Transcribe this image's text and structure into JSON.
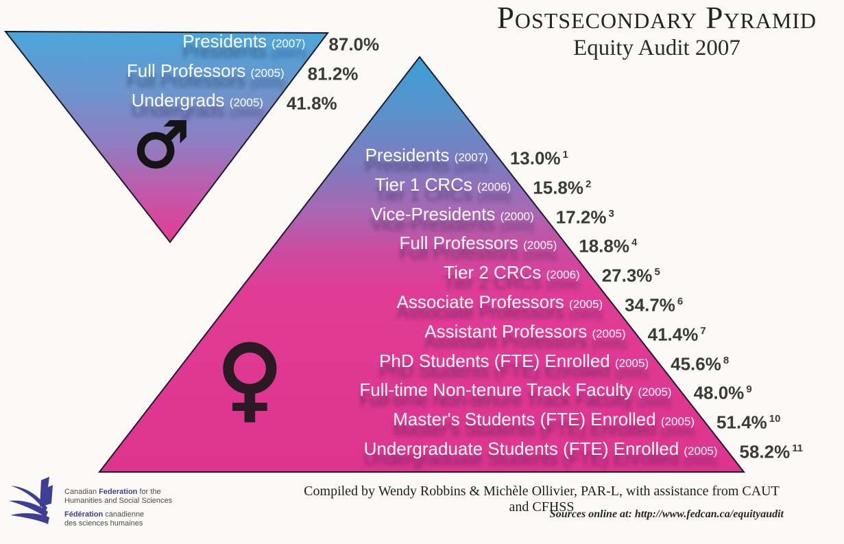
{
  "title": {
    "line1": "Postsecondary Pyramid",
    "line2": "Equity Audit 2007"
  },
  "male_triangle": {
    "symbol": "♂",
    "rows": [
      {
        "label": "Presidents",
        "year": "(2007)",
        "value": "87.0%",
        "footnote": ""
      },
      {
        "label": "Full Professors",
        "year": "(2005)",
        "value": "81.2%",
        "footnote": ""
      },
      {
        "label": "Undergrads",
        "year": "(2005)",
        "value": "41.8%",
        "footnote": ""
      }
    ]
  },
  "female_pyramid": {
    "symbol": "♀",
    "rows": [
      {
        "label": "Presidents",
        "year": "(2007)",
        "value": "13.0%",
        "footnote": "1"
      },
      {
        "label": "Tier 1 CRCs",
        "year": "(2006)",
        "value": "15.8%",
        "footnote": "2"
      },
      {
        "label": "Vice-Presidents",
        "year": "(2000)",
        "value": "17.2%",
        "footnote": "3"
      },
      {
        "label": "Full Professors",
        "year": "(2005)",
        "value": "18.8%",
        "footnote": "4"
      },
      {
        "label": "Tier 2 CRCs",
        "year": "(2006)",
        "value": "27.3%",
        "footnote": "5"
      },
      {
        "label": "Associate Professors",
        "year": "(2005)",
        "value": "34.7%",
        "footnote": "6"
      },
      {
        "label": "Assistant Professors",
        "year": "(2005)",
        "value": "41.4%",
        "footnote": "7"
      },
      {
        "label": "PhD Students (FTE) Enrolled",
        "year": "(2005)",
        "value": "45.6%",
        "footnote": "8"
      },
      {
        "label": "Full-time Non-tenure Track Faculty",
        "year": "(2005)",
        "value": "48.0%",
        "footnote": "9"
      },
      {
        "label": "Master's Students (FTE) Enrolled",
        "year": "(2005)",
        "value": "51.4%",
        "footnote": "10"
      },
      {
        "label": "Undergraduate Students (FTE) Enrolled",
        "year": "(2005)",
        "value": "58.2%",
        "footnote": "11"
      }
    ]
  },
  "footer": {
    "compiled": "Compiled by Wendy Robbins & Michèle Ollivier, PAR-L, with assistance from CAUT and CFHSS",
    "sources": "Sources online at: http://www.fedcan.ca/equityaudit"
  },
  "logo": {
    "line1_pre": "Canadian ",
    "line1_bold": "Federation",
    "line1_post": " for the",
    "line2": "Humanities and Social Sciences",
    "line3_bold": "Fédération",
    "line3_post": " canadienne",
    "line4": "des sciences humaines"
  },
  "colors": {
    "gradient_top_blue": "#3D9ED7",
    "gradient_mid_purple": "#8179BE",
    "gradient_bottom_pink": "#DE348E",
    "percent_text": "#3A3A3A",
    "logo_blue": "#3E3E96"
  },
  "chart_data": [
    {
      "type": "bar",
      "subtype": "inverted-triangle-pyramid",
      "title": "Male (♂) representation",
      "categories": [
        "Presidents (2007)",
        "Full Professors (2005)",
        "Undergrads (2005)"
      ],
      "values": [
        87.0,
        81.2,
        41.8
      ],
      "unit": "%",
      "legend_position": "none",
      "grid": false
    },
    {
      "type": "bar",
      "subtype": "pyramid",
      "title": "Female (♀) representation",
      "categories": [
        "Presidents (2007)",
        "Tier 1 CRCs (2006)",
        "Vice-Presidents (2000)",
        "Full Professors (2005)",
        "Tier 2 CRCs (2006)",
        "Associate Professors (2005)",
        "Assistant Professors (2005)",
        "PhD Students (FTE) Enrolled (2005)",
        "Full-time Non-tenure Track Faculty (2005)",
        "Master's Students (FTE) Enrolled (2005)",
        "Undergraduate Students (FTE) Enrolled (2005)"
      ],
      "values": [
        13.0,
        15.8,
        17.2,
        18.8,
        27.3,
        34.7,
        41.4,
        45.6,
        48.0,
        51.4,
        58.2
      ],
      "footnotes": [
        1,
        2,
        3,
        4,
        5,
        6,
        7,
        8,
        9,
        10,
        11
      ],
      "unit": "%",
      "legend_position": "none",
      "grid": false
    }
  ]
}
